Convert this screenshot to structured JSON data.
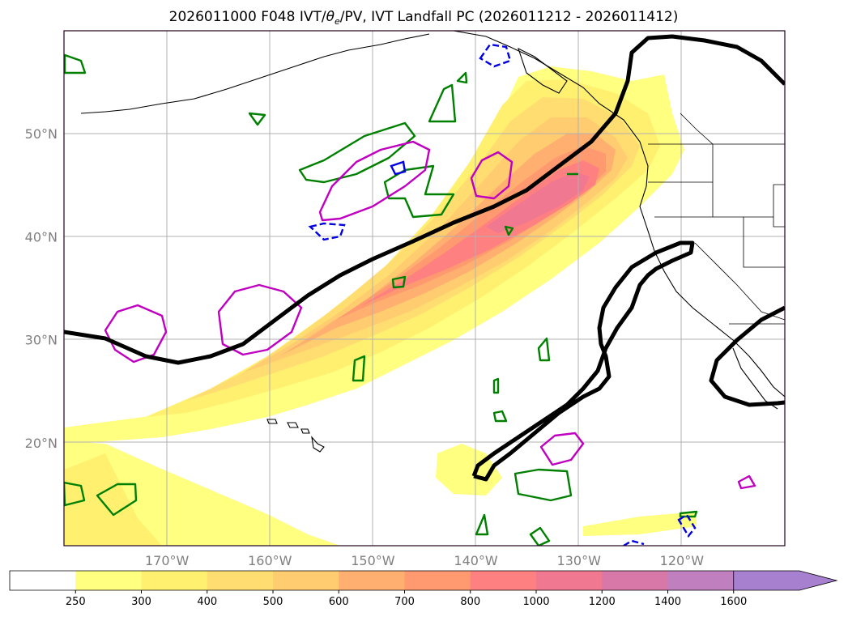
{
  "title_parts": {
    "prefix": "2026011000 F048 IVT/",
    "theta": "θ",
    "theta_sub": "e",
    "suffix": "/PV, IVT Landfall PC (2026011212 - 2026011412)"
  },
  "map": {
    "projection": "PlateCarree",
    "lon_range": [
      -180,
      -110
    ],
    "lat_range": [
      10,
      60
    ],
    "lat_ticks": [
      {
        "value": 20,
        "label": "20°N"
      },
      {
        "value": 30,
        "label": "30°N"
      },
      {
        "value": 40,
        "label": "40°N"
      },
      {
        "value": 50,
        "label": "50°N"
      }
    ],
    "lon_ticks": [
      {
        "value": -170,
        "label": "170°W"
      },
      {
        "value": -160,
        "label": "160°W"
      },
      {
        "value": -150,
        "label": "150°W"
      },
      {
        "value": -140,
        "label": "140°W"
      },
      {
        "value": -130,
        "label": "130°W"
      },
      {
        "value": -120,
        "label": "120°W"
      }
    ],
    "grid": true
  },
  "colorbar": {
    "levels": [
      "250",
      "300",
      "400",
      "500",
      "600",
      "700",
      "800",
      "1000",
      "1200",
      "1400",
      "1600"
    ],
    "colors": [
      "#ffff80",
      "#fff070",
      "#ffdd70",
      "#ffcc70",
      "#ffb070",
      "#ff9a70",
      "#ff8080",
      "#f07890",
      "#d878a8",
      "#c080c0",
      "#a880d0"
    ],
    "extend": "max"
  }
}
